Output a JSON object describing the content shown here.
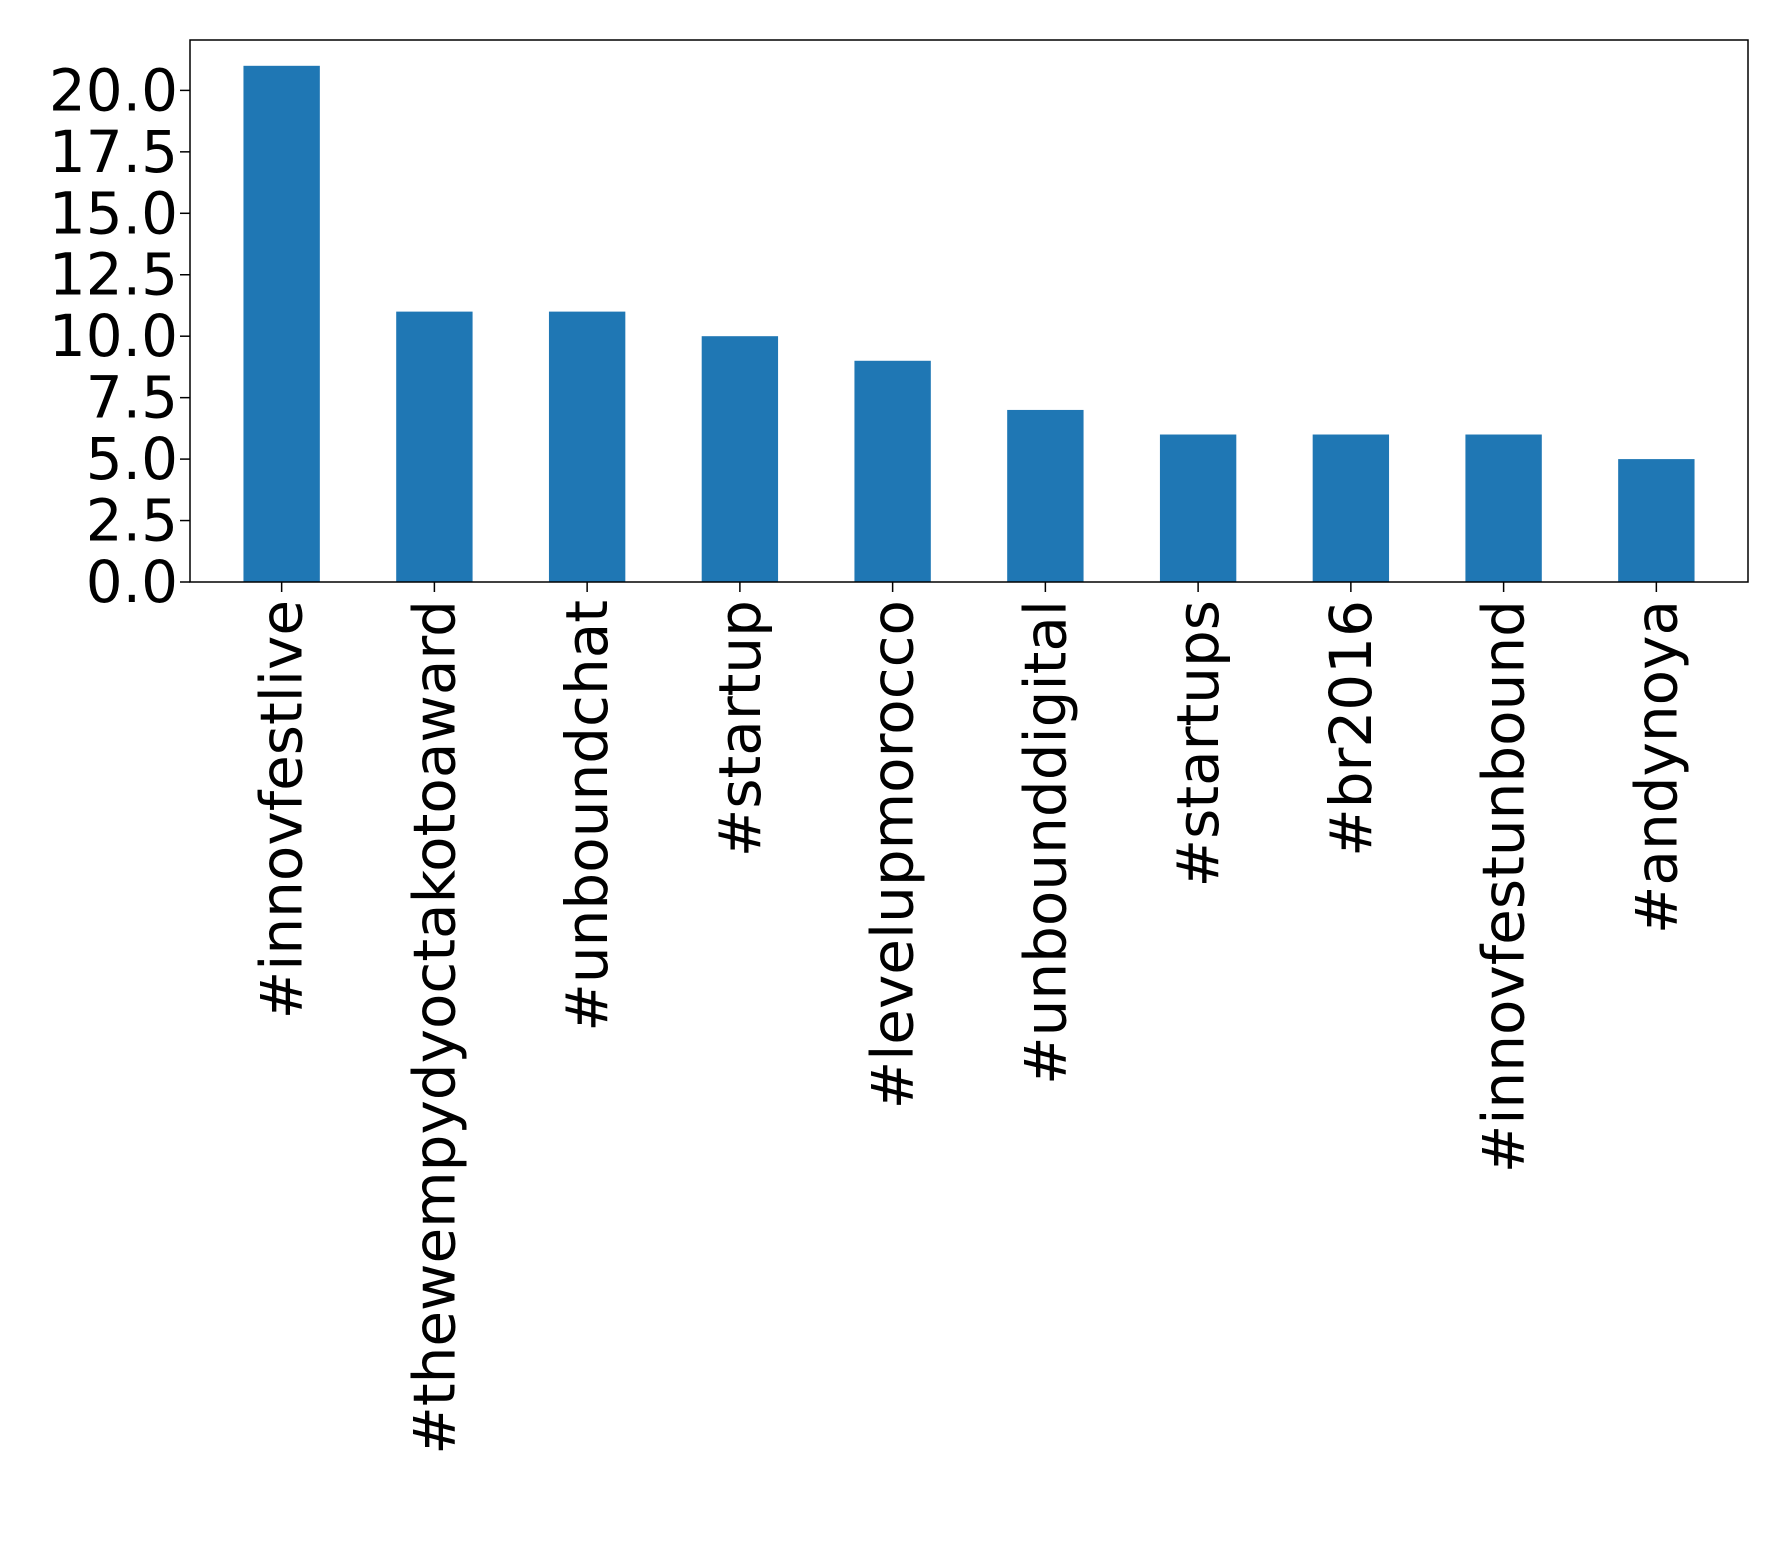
{
  "chart_data": {
    "type": "bar",
    "title": "",
    "xlabel": "",
    "ylabel": "",
    "categories": [
      "#innovfestlive",
      "#thewempydyoctakotoaward",
      "#unboundchat",
      "#startup",
      "#levelupmorocco",
      "#unbounddigital",
      "#startups",
      "#br2016",
      "#innovfestunbound",
      "#andynoya"
    ],
    "values": [
      21,
      11,
      11,
      10,
      9,
      7,
      6,
      6,
      6,
      5
    ],
    "ylim": [
      0,
      22.05
    ],
    "yticks": [
      0.0,
      2.5,
      5.0,
      7.5,
      10.0,
      12.5,
      15.0,
      17.5,
      20.0
    ],
    "ytick_labels": [
      "0.0",
      "2.5",
      "5.0",
      "7.5",
      "10.0",
      "12.5",
      "15.0",
      "17.5",
      "20.0"
    ],
    "bar_color": "#1f77b4",
    "grid": false,
    "legend": "none"
  }
}
